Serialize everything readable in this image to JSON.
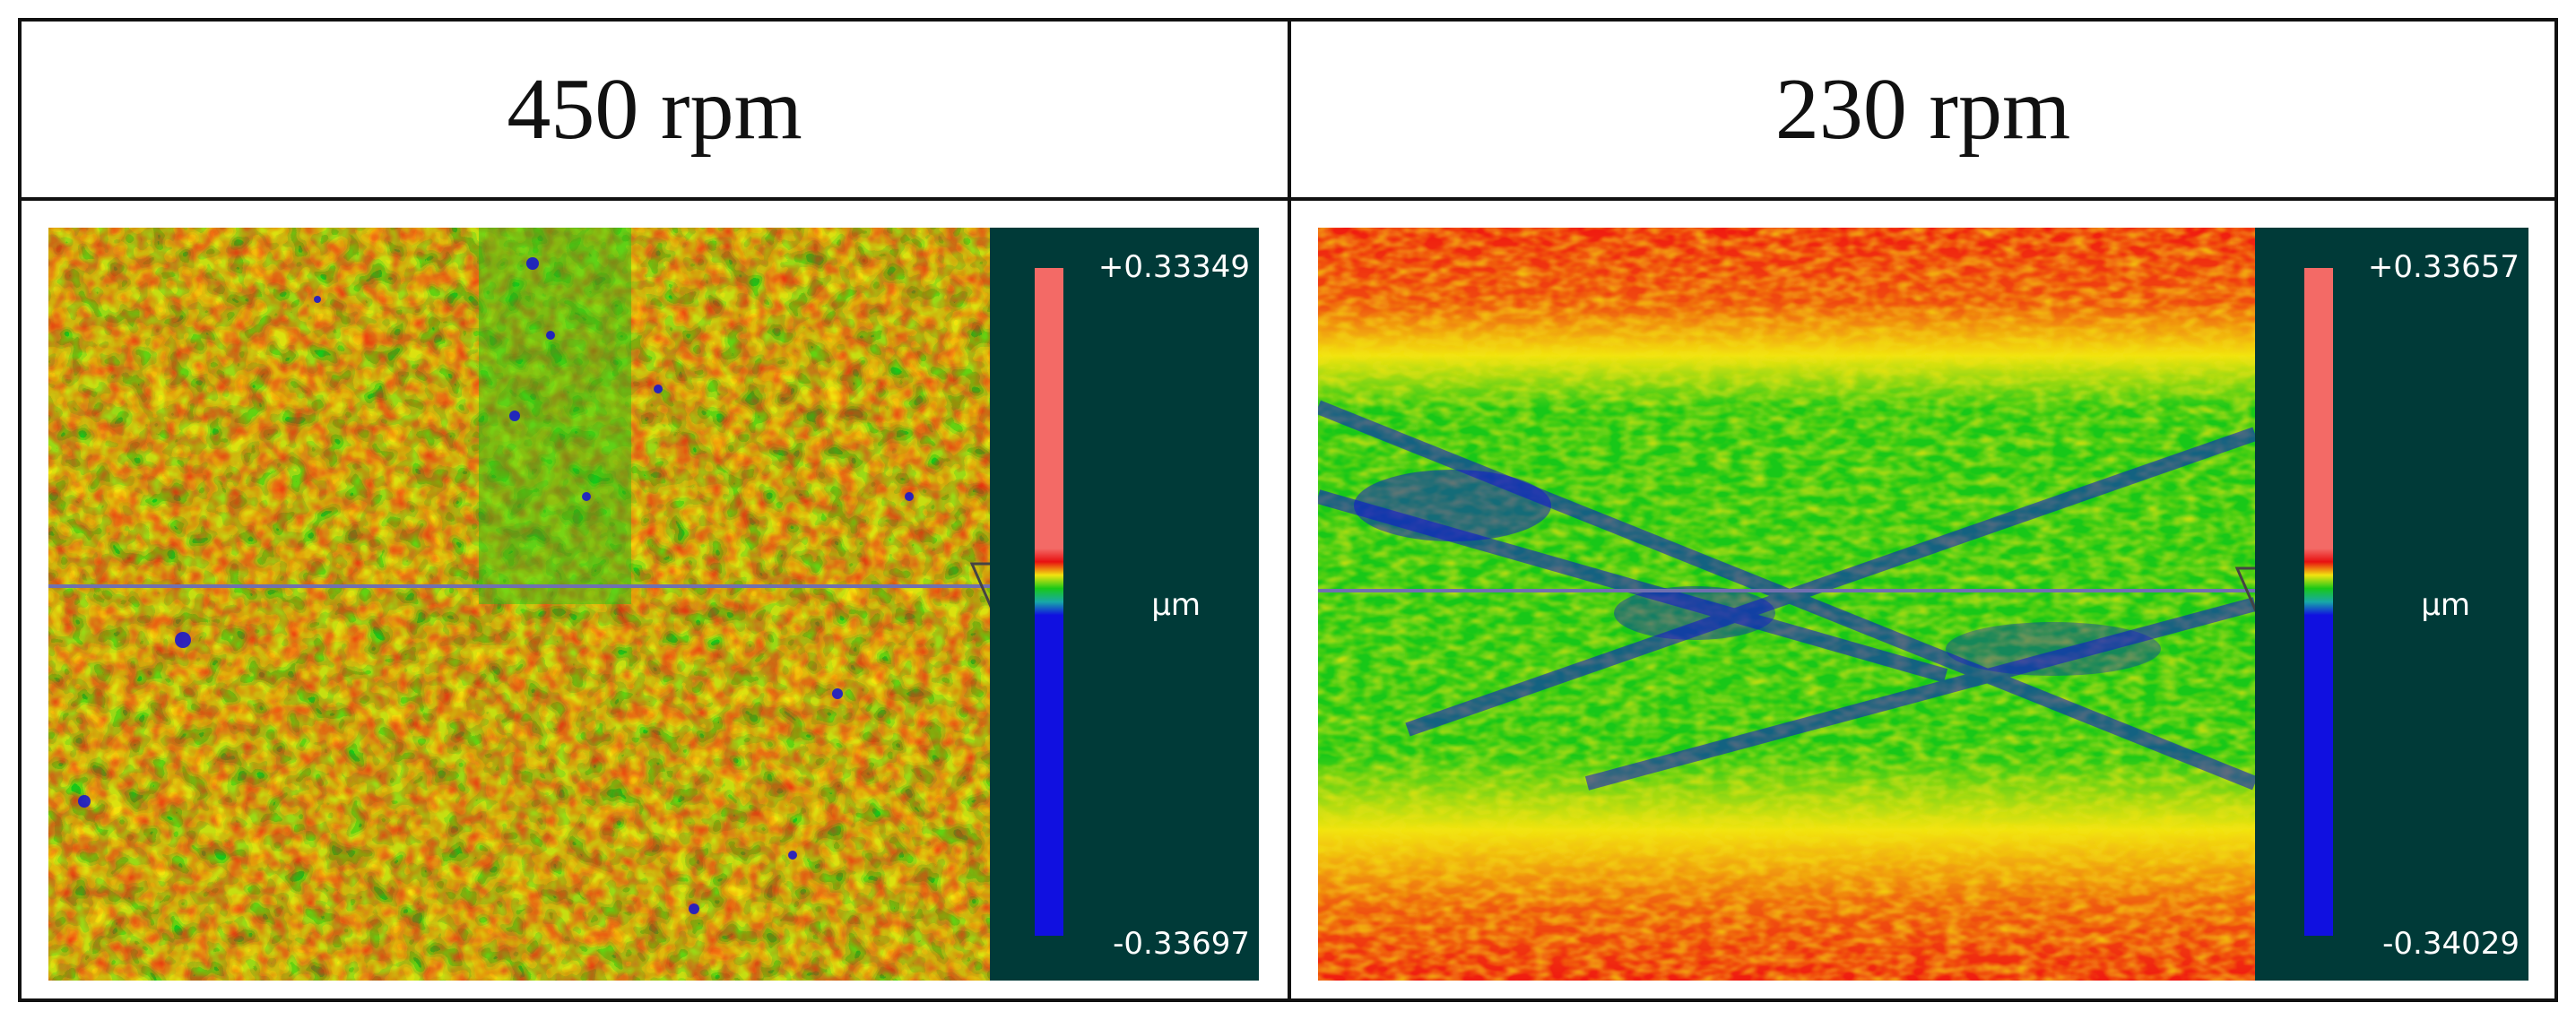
{
  "panels": [
    {
      "id": "left",
      "header": "450 rpm",
      "scale_max": "+0.33349",
      "scale_min": "-0.33697",
      "unit": "µm",
      "pattern": "fine mottled red-yellow-green with vertical green band",
      "colors": {
        "red": "#f01a10",
        "yellow": "#f2e410",
        "green": "#18c818",
        "blue": "#1010d8",
        "panel_bg": "#003a38"
      }
    },
    {
      "id": "right",
      "header": "230 rpm",
      "scale_max": "+0.33657",
      "scale_min": "-0.34029",
      "unit": "µm",
      "pattern": "red top and bottom bands, green-blue center with diagonal blue streaks",
      "colors": {
        "red": "#f01a10",
        "yellow": "#f2e410",
        "green": "#18c818",
        "blue": "#1010d8",
        "panel_bg": "#003a38"
      }
    }
  ]
}
